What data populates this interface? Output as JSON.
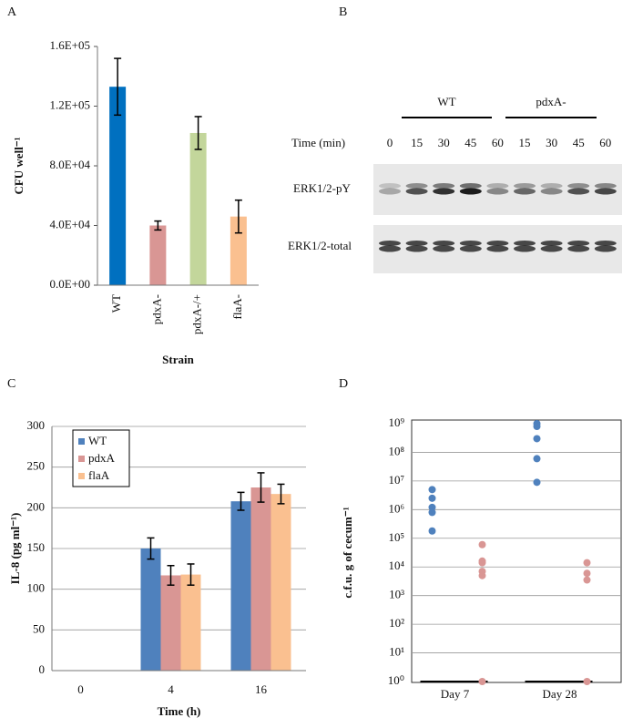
{
  "panel_labels": [
    "A",
    "B",
    "C",
    "D"
  ],
  "blot": {
    "groups": [
      "WT",
      "pdxA-"
    ],
    "time_label": "Time (min)",
    "times": [
      "0",
      "15",
      "30",
      "45",
      "60",
      "15",
      "30",
      "45",
      "60"
    ],
    "rows": [
      "ERK1/2-pY",
      "ERK1/2-total"
    ]
  },
  "chart_data": [
    {
      "type": "bar",
      "ylabel": "CFU well⁻¹",
      "xlabel": "Strain",
      "categories": [
        "WT",
        "pdxA-",
        "pdxA-/+",
        "flaA-"
      ],
      "values": [
        133000,
        40000,
        102000,
        46000
      ],
      "errors": [
        19000,
        3000,
        11000,
        11000
      ],
      "colors": [
        "#0070c0",
        "#d99694",
        "#c3d69b",
        "#fac090"
      ],
      "ylim": [
        0,
        160000
      ],
      "yticks": [
        {
          "value": 0,
          "label": "0.0E+00"
        },
        {
          "value": 40000,
          "label": "4.0E+04"
        },
        {
          "value": 80000,
          "label": "8.0E+04"
        },
        {
          "value": 120000,
          "label": "1.2E+05"
        },
        {
          "value": 160000,
          "label": "1.6E+05"
        }
      ],
      "grid": false
    },
    {
      "type": "bar",
      "ylabel": "IL-8 (pg ml⁻¹)",
      "xlabel": "Time (h)",
      "categories": [
        "0",
        "4",
        "16"
      ],
      "series": [
        {
          "name": "WT",
          "color": "#4f81bd",
          "values": [
            null,
            150,
            208
          ],
          "errors": [
            null,
            13,
            11
          ]
        },
        {
          "name": "pdxA",
          "color": "#d99694",
          "values": [
            null,
            117,
            225
          ],
          "errors": [
            null,
            12,
            18
          ]
        },
        {
          "name": "flaA",
          "color": "#fac090",
          "values": [
            null,
            118,
            217
          ],
          "errors": [
            null,
            13,
            12
          ]
        }
      ],
      "ylim": [
        0,
        300
      ],
      "yticks": [
        0,
        50,
        100,
        150,
        200,
        250,
        300
      ],
      "grid": true,
      "legend": "upper-left"
    },
    {
      "type": "strip",
      "ylabel": "c.f.u. g of cecum⁻¹",
      "categories": [
        "Day 7",
        "Day 28"
      ],
      "series": [
        {
          "color": "#4f81bd",
          "values": [
            [
              5000000,
              2500000,
              1200000,
              800000,
              180000
            ],
            [
              1000000000,
              800000000,
              300000000,
              60000000,
              9000000
            ]
          ]
        },
        {
          "color": "#d99694",
          "values": [
            [
              60000,
              16000,
              14000,
              7000,
              5000,
              1
            ],
            [
              14000,
              6000,
              3500,
              1
            ]
          ]
        }
      ],
      "log_scale": true,
      "ylim": [
        1,
        1000000000
      ],
      "yticks": [
        {
          "value": 1,
          "label": "10⁰"
        },
        {
          "value": 10,
          "label": "10¹"
        },
        {
          "value": 100,
          "label": "10²"
        },
        {
          "value": 1000,
          "label": "10³"
        },
        {
          "value": 10000,
          "label": "10⁴"
        },
        {
          "value": 100000,
          "label": "10⁵"
        },
        {
          "value": 1000000,
          "label": "10⁶"
        },
        {
          "value": 10000000,
          "label": "10⁷"
        },
        {
          "value": 100000000,
          "label": "10⁸"
        },
        {
          "value": 1000000000,
          "label": "10⁹"
        }
      ],
      "grid": true
    }
  ]
}
